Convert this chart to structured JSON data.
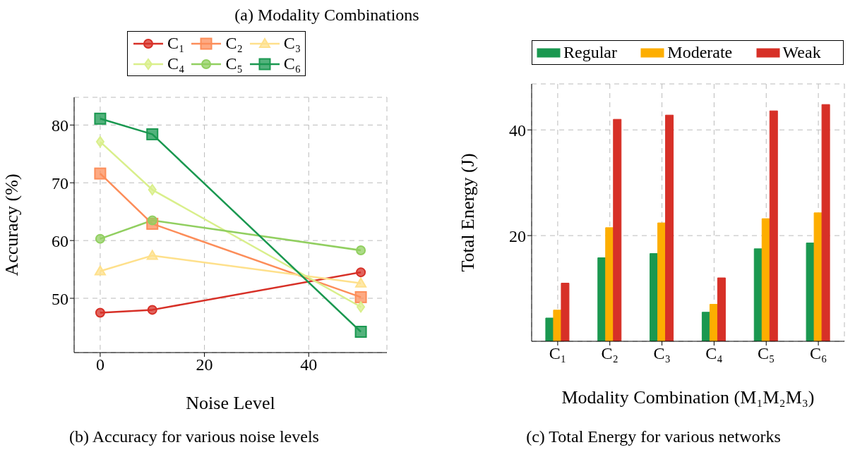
{
  "chart_data": [
    {
      "type": "line",
      "title": "(b) Accuracy for various noise levels",
      "annotations": [
        "(a) Modality Combinations"
      ],
      "xlabel": "Noise Level",
      "ylabel": "Accuracy (%)",
      "x": [
        0,
        10,
        50
      ],
      "series": [
        {
          "name": "C₁",
          "color": "#d73027",
          "marker": "circle",
          "values": [
            47.5,
            48.0,
            54.5
          ]
        },
        {
          "name": "C₂",
          "color": "#fc8d59",
          "marker": "square",
          "values": [
            71.6,
            62.9,
            50.2
          ]
        },
        {
          "name": "C₃",
          "color": "#fee08b",
          "marker": "triangle",
          "values": [
            54.7,
            57.4,
            52.6
          ]
        },
        {
          "name": "C₄",
          "color": "#d9ef8b",
          "marker": "diamond",
          "values": [
            77.1,
            68.8,
            48.5
          ]
        },
        {
          "name": "C₅",
          "color": "#91cf60",
          "marker": "circle",
          "values": [
            60.3,
            63.5,
            58.3
          ]
        },
        {
          "name": "C₆",
          "color": "#1a9850",
          "marker": "square",
          "values": [
            81.1,
            78.4,
            44.2
          ]
        }
      ],
      "xlim": [
        -5,
        55
      ],
      "xticks": [
        0,
        20,
        40
      ],
      "ylim": [
        40.6,
        84.8
      ],
      "yticks": [
        50,
        60,
        70,
        80
      ],
      "grid": true,
      "legend": "top",
      "line_style": "solid"
    },
    {
      "type": "bar",
      "title": "(c) Total Energy for various networks",
      "xlabel": "Modality Combination (M₁M₂M₃)",
      "ylabel": "Total Energy (J)",
      "categories": [
        "C₁",
        "C₂",
        "C₃",
        "C₄",
        "C₅",
        "C₆"
      ],
      "series": [
        {
          "name": "Regular",
          "color": "#1a9850",
          "values": [
            4.4,
            15.8,
            16.6,
            5.5,
            17.5,
            18.6
          ]
        },
        {
          "name": "Moderate",
          "color": "#fdae00",
          "values": [
            5.9,
            21.5,
            22.4,
            7.0,
            23.2,
            24.3
          ]
        },
        {
          "name": "Weak",
          "color": "#d73027",
          "values": [
            11.0,
            42.0,
            42.8,
            12.0,
            43.6,
            44.8
          ]
        }
      ],
      "ylim": [
        0,
        48.7
      ],
      "yticks": [
        20,
        40
      ],
      "grid": true,
      "legend": "top"
    }
  ]
}
